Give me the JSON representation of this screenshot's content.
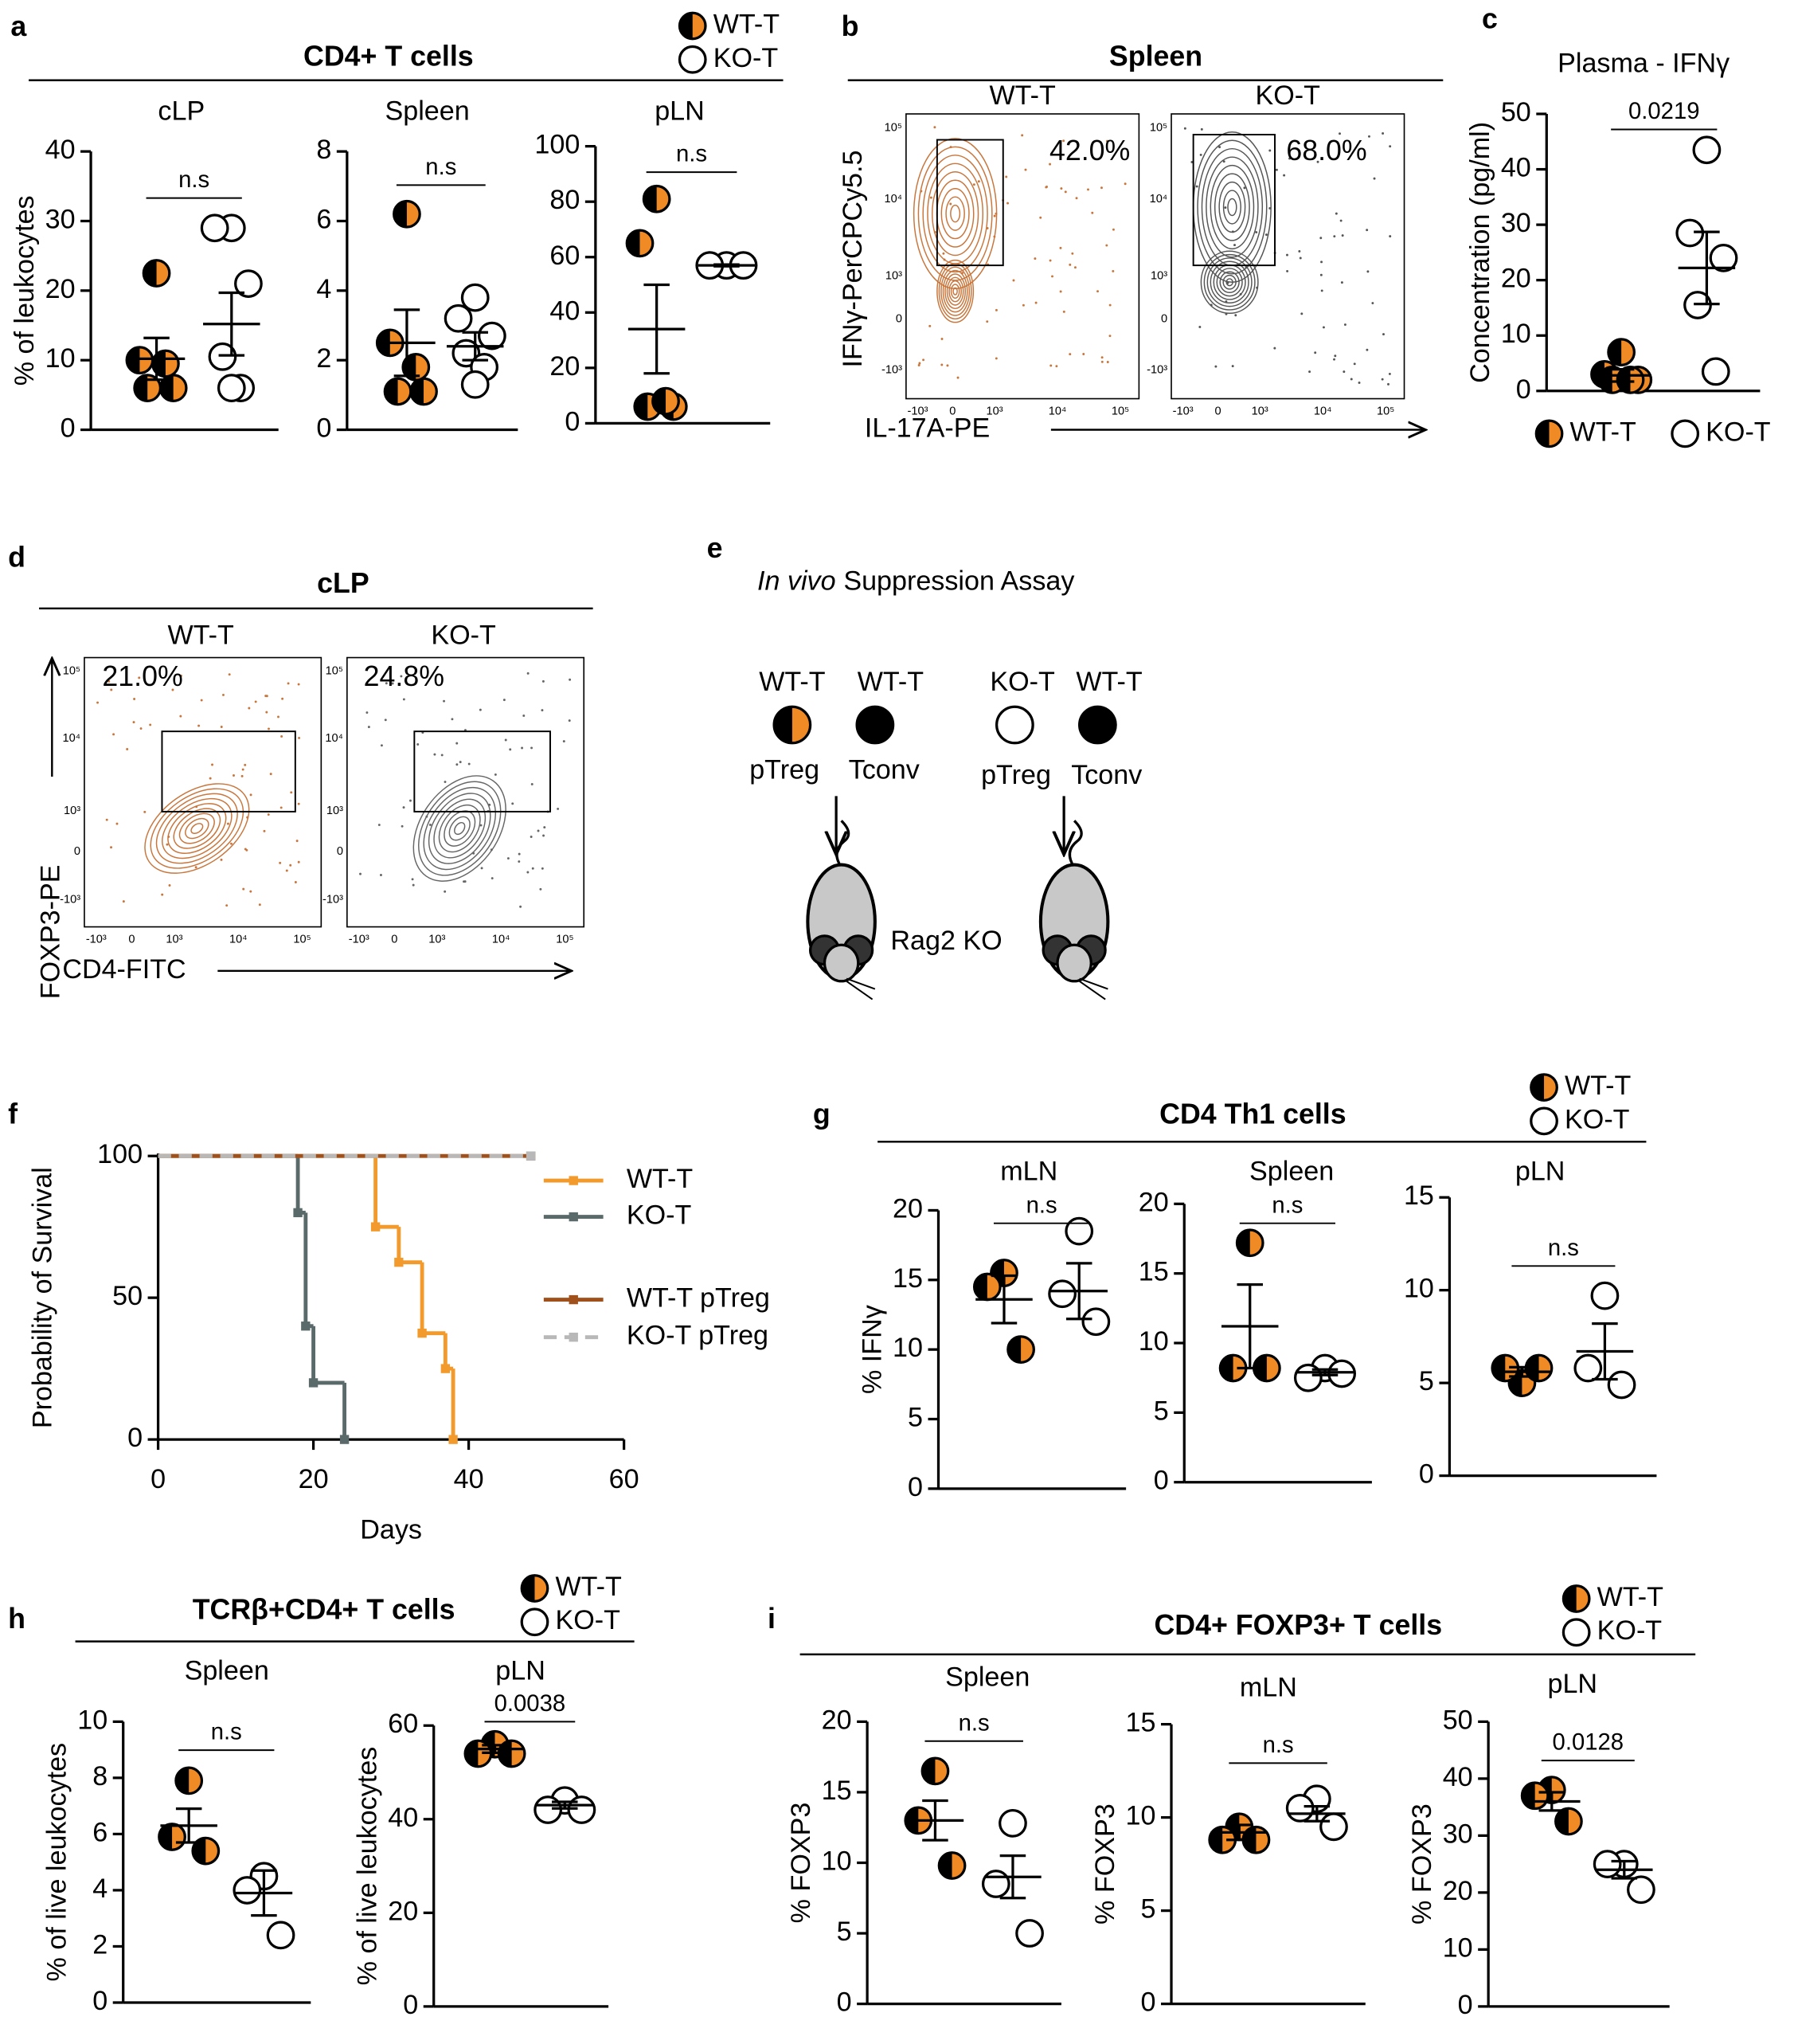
{
  "panels": [
    "a",
    "b",
    "c",
    "d",
    "e",
    "f",
    "g",
    "h",
    "i"
  ],
  "groups": [
    {
      "title": "CD4+ T cells"
    },
    {
      "title": "CD4 Th1 cells"
    },
    {
      "title": "TCRβ+CD4+ T cells"
    },
    {
      "title": "CD4+ FOXP3+ T cells"
    }
  ],
  "chart_data": [
    {
      "type": "dotplot",
      "title": "cLP",
      "ylabel": "% of leukocytes",
      "ylim": [
        0,
        40
      ],
      "yticks": [
        0,
        10,
        20,
        30,
        40
      ],
      "annotation": "n.s",
      "series": [
        {
          "name": "WT-T",
          "color": "#f08a24",
          "marker": "half",
          "values": [
            22.5,
            10,
            6,
            6,
            9.5
          ],
          "mean": 10.2,
          "error": 3
        },
        {
          "name": "KO-T",
          "color": "#ffffff",
          "marker": "open",
          "values": [
            29,
            29,
            21,
            10.5,
            6,
            6
          ],
          "mean": 15.2,
          "error": 4.5
        }
      ]
    },
    {
      "type": "dotplot",
      "title": "Spleen",
      "ylim": [
        0,
        8
      ],
      "yticks": [
        0,
        2,
        4,
        6,
        8
      ],
      "annotation": "n.s",
      "series": [
        {
          "name": "WT-T",
          "color": "#f08a24",
          "marker": "half",
          "values": [
            6.2,
            2.5,
            1.1,
            1.1,
            1.8
          ],
          "mean": 2.5,
          "error": 0.95
        },
        {
          "name": "KO-T",
          "color": "#ffffff",
          "marker": "open",
          "values": [
            3.8,
            3.2,
            2.7,
            2.2,
            1.8,
            1.3
          ],
          "mean": 2.4,
          "error": 0.4
        }
      ]
    },
    {
      "type": "dotplot",
      "title": "pLN",
      "ylim": [
        0,
        100
      ],
      "yticks": [
        0,
        20,
        40,
        60,
        80,
        100
      ],
      "annotation": "n.s",
      "series": [
        {
          "name": "WT-T",
          "color": "#f08a24",
          "marker": "half",
          "values": [
            81,
            65,
            6,
            6,
            8
          ],
          "mean": 34,
          "error": 16
        },
        {
          "name": "KO-T",
          "color": "#ffffff",
          "marker": "open",
          "values": [
            57,
            57,
            57
          ],
          "mean": 57,
          "error": 0.3
        }
      ]
    },
    {
      "type": "dotplot",
      "title": "Plasma - IFNγ",
      "ylabel": "Concentration (pg/ml)",
      "ylim": [
        0,
        50
      ],
      "yticks": [
        0,
        10,
        20,
        30,
        40,
        50
      ],
      "annotation": "0.0219",
      "series": [
        {
          "name": "WT-T",
          "color": "#f08a24",
          "marker": "half",
          "values": [
            7,
            3,
            2,
            2,
            2
          ],
          "mean": 2.8,
          "error": 1.1
        },
        {
          "name": "KO-T",
          "color": "#ffffff",
          "marker": "open",
          "values": [
            43.5,
            28.5,
            24,
            15.5,
            3.5
          ],
          "mean": 22.2,
          "error": 6.5
        }
      ]
    },
    {
      "type": "dotplot",
      "title": "mLN",
      "ylabel": "% IFNγ",
      "ylim": [
        0,
        20
      ],
      "yticks": [
        0,
        5,
        10,
        15,
        20
      ],
      "annotation": "n.s",
      "series": [
        {
          "name": "WT-T",
          "color": "#f08a24",
          "marker": "half",
          "values": [
            15.5,
            14.5,
            10
          ],
          "mean": 13.6,
          "error": 1.7
        },
        {
          "name": "KO-T",
          "color": "#ffffff",
          "marker": "open",
          "values": [
            18.5,
            14,
            12
          ],
          "mean": 14.2,
          "error": 2
        }
      ]
    },
    {
      "type": "dotplot",
      "title": "Spleen",
      "ylim": [
        0,
        20
      ],
      "yticks": [
        0,
        5,
        10,
        15,
        20
      ],
      "annotation": "n.s",
      "series": [
        {
          "name": "WT-T",
          "color": "#f08a24",
          "marker": "half",
          "values": [
            17.2,
            8.2,
            8.2
          ],
          "mean": 11.2,
          "error": 3
        },
        {
          "name": "KO-T",
          "color": "#ffffff",
          "marker": "open",
          "values": [
            8.2,
            7.5,
            7.8
          ],
          "mean": 7.9,
          "error": 0.2
        }
      ]
    },
    {
      "type": "dotplot",
      "title": "pLN",
      "ylim": [
        0,
        15
      ],
      "yticks": [
        0,
        5,
        10,
        15
      ],
      "annotation": "n.s",
      "series": [
        {
          "name": "WT-T",
          "color": "#f08a24",
          "marker": "half",
          "values": [
            5,
            5.8,
            5.8
          ],
          "mean": 5.6,
          "error": 0.25
        },
        {
          "name": "KO-T",
          "color": "#ffffff",
          "marker": "open",
          "values": [
            9.7,
            5.8,
            4.9
          ],
          "mean": 6.7,
          "error": 1.5
        }
      ]
    },
    {
      "type": "dotplot",
      "title": "Spleen",
      "ylabel": "% of live leukocytes",
      "ylim": [
        0,
        10
      ],
      "yticks": [
        0,
        2,
        4,
        6,
        8,
        10
      ],
      "annotation": "n.s",
      "series": [
        {
          "name": "WT-T",
          "color": "#f08a24",
          "marker": "half",
          "values": [
            7.9,
            5.9,
            5.4
          ],
          "mean": 6.3,
          "error": 0.6
        },
        {
          "name": "KO-T",
          "color": "#ffffff",
          "marker": "open",
          "values": [
            4.5,
            4,
            2.4
          ],
          "mean": 3.9,
          "error": 0.8
        }
      ]
    },
    {
      "type": "dotplot",
      "title": "pLN",
      "ylabel": "% of live leukocytes",
      "ylim": [
        0,
        60
      ],
      "yticks": [
        0,
        20,
        40,
        60
      ],
      "annotation": "0.0038",
      "series": [
        {
          "name": "WT-T",
          "color": "#f08a24",
          "marker": "half",
          "values": [
            56,
            54,
            54
          ],
          "mean": 55,
          "error": 0.8
        },
        {
          "name": "KO-T",
          "color": "#ffffff",
          "marker": "open",
          "values": [
            44,
            42,
            42
          ],
          "mean": 43,
          "error": 0.7
        }
      ]
    },
    {
      "type": "dotplot",
      "title": "Spleen",
      "ylabel": "% FOXP3",
      "ylim": [
        0,
        20
      ],
      "yticks": [
        0,
        5,
        10,
        15,
        20
      ],
      "annotation": "n.s",
      "series": [
        {
          "name": "WT-T",
          "color": "#f08a24",
          "marker": "half",
          "values": [
            16.5,
            13,
            9.8
          ],
          "mean": 13,
          "error": 1.4
        },
        {
          "name": "KO-T",
          "color": "#ffffff",
          "marker": "open",
          "values": [
            12.8,
            8.5,
            5
          ],
          "mean": 9,
          "error": 1.5
        }
      ]
    },
    {
      "type": "dotplot",
      "title": "mLN",
      "ylabel": "% FOXP3",
      "ylim": [
        0,
        15
      ],
      "yticks": [
        0,
        5,
        10,
        15
      ],
      "annotation": "n.s",
      "series": [
        {
          "name": "WT-T",
          "color": "#f08a24",
          "marker": "half",
          "values": [
            9.5,
            8.8,
            8.8
          ],
          "mean": 9.2,
          "error": 0.4
        },
        {
          "name": "KO-T",
          "color": "#ffffff",
          "marker": "open",
          "values": [
            11,
            10.5,
            9.5
          ],
          "mean": 10.2,
          "error": 0.4
        }
      ]
    },
    {
      "type": "dotplot",
      "title": "pLN",
      "ylabel": "% FOXP3",
      "ylim": [
        0,
        50
      ],
      "yticks": [
        0,
        10,
        20,
        30,
        40,
        50
      ],
      "annotation": "0.0128",
      "series": [
        {
          "name": "WT-T",
          "color": "#f08a24",
          "marker": "half",
          "values": [
            38,
            37,
            32.5
          ],
          "mean": 36,
          "error": 1.6
        },
        {
          "name": "KO-T",
          "color": "#ffffff",
          "marker": "open",
          "values": [
            25,
            25,
            20.5
          ],
          "mean": 24,
          "error": 1.5
        }
      ]
    },
    {
      "type": "survival",
      "xlabel": "Days",
      "ylabel": "Probability of Survival",
      "xlim": [
        0,
        60
      ],
      "xticks": [
        0,
        20,
        40,
        60
      ],
      "ylim": [
        0,
        100
      ],
      "yticks": [
        0,
        50,
        100
      ],
      "series": [
        {
          "name": "WT-T",
          "color": "#f39a2c",
          "x": [
            0,
            28,
            31,
            34,
            37,
            38
          ],
          "values": [
            100,
            75,
            62.5,
            37.5,
            25,
            0
          ]
        },
        {
          "name": "KO-T",
          "color": "#5a6a6a",
          "x": [
            0,
            18,
            19,
            20,
            24
          ],
          "values": [
            100,
            80,
            40,
            20,
            0
          ]
        },
        {
          "name": "WT-T pTreg",
          "color": "#a0501a",
          "x": [
            0,
            48
          ],
          "values": [
            100,
            100
          ]
        },
        {
          "name": "KO-T pTreg",
          "color": "#b8b8b8",
          "dashed": true,
          "x": [
            0,
            48
          ],
          "values": [
            100,
            100
          ]
        }
      ]
    }
  ],
  "flow": [
    {
      "title": "Spleen",
      "ylabel": "IFNγ-PerCPCy5.5",
      "xlabel": "IL-17A-PE",
      "ticks": [
        "-10³",
        "0",
        "10³",
        "10⁴",
        "10⁵"
      ],
      "plots": [
        {
          "name": "WT-T",
          "gate": "42.0%"
        },
        {
          "name": "KO-T",
          "gate": "68.0%"
        }
      ]
    },
    {
      "title": "cLP",
      "ylabel": "FOXP3-PE",
      "xlabel": "CD4-FITC",
      "ticks": [
        "-10³",
        "0",
        "10³",
        "10⁴",
        "10⁵"
      ],
      "plots": [
        {
          "name": "WT-T",
          "gate": "21.0%"
        },
        {
          "name": "KO-T",
          "gate": "24.8%"
        }
      ]
    }
  ],
  "diagram": {
    "title_italic": "In vivo",
    "title": "Suppression Assay",
    "cells": [
      {
        "source": "WT-T",
        "type": "pTreg"
      },
      {
        "source": "WT-T",
        "type": "Tconv"
      },
      {
        "source": "KO-T",
        "type": "pTreg"
      },
      {
        "source": "WT-T",
        "type": "Tconv"
      }
    ],
    "recipient": "Rag2 KO"
  }
}
